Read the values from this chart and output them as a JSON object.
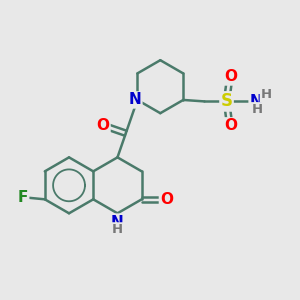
{
  "bg": "#e8e8e8",
  "bond_color": "#4a7a6a",
  "bond_width": 1.8,
  "atom_colors": {
    "O": "#ff0000",
    "N": "#0000cc",
    "F": "#228822",
    "S": "#cccc00",
    "H": "#777777",
    "C": "#4a7a6a"
  },
  "fs": 10.5
}
